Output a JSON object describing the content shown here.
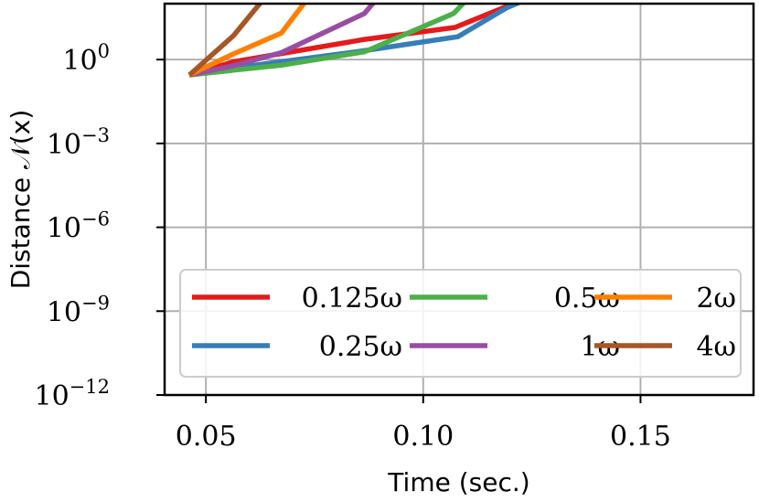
{
  "chart_data": {
    "type": "line",
    "xlabel": "Time (sec.)",
    "ylabel": "Distance 𝒩(x)",
    "xlim": [
      0.0405,
      0.176
    ],
    "ylim_log10": [
      -12,
      2
    ],
    "x_ticks": [
      {
        "value": 0.05,
        "label": "0.05"
      },
      {
        "value": 0.1,
        "label": "0.10"
      },
      {
        "value": 0.15,
        "label": "0.15"
      }
    ],
    "y_ticks": [
      {
        "exp": 0,
        "label": "0"
      },
      {
        "exp": -3,
        "label": "−3"
      },
      {
        "exp": -6,
        "label": "−6"
      },
      {
        "exp": -9,
        "label": "−9"
      },
      {
        "exp": -12,
        "label": "−12"
      }
    ],
    "y_tick_base": "10",
    "grid": true,
    "legend_position": "lower-right",
    "series": [
      {
        "name": "0.125ω",
        "color": "#e41a1c",
        "points": [
          [
            0.0462,
            -0.55
          ],
          [
            0.0563,
            -0.08
          ],
          [
            0.0865,
            0.72
          ],
          [
            0.1073,
            1.15
          ],
          [
            0.1192,
            1.9
          ],
          [
            0.125,
            2.2
          ]
        ]
      },
      {
        "name": "0.25ω",
        "color": "#377eb8",
        "points": [
          [
            0.0462,
            -0.55
          ],
          [
            0.0563,
            -0.3
          ],
          [
            0.0865,
            0.32
          ],
          [
            0.108,
            0.82
          ],
          [
            0.1192,
            1.85
          ],
          [
            0.126,
            2.3
          ]
        ]
      },
      {
        "name": "0.5ω",
        "color": "#4daf4a",
        "points": [
          [
            0.0462,
            -0.55
          ],
          [
            0.0563,
            -0.38
          ],
          [
            0.0674,
            -0.2
          ],
          [
            0.0865,
            0.28
          ],
          [
            0.107,
            1.65
          ],
          [
            0.111,
            2.3
          ]
        ]
      },
      {
        "name": "1ω",
        "color": "#984ea3",
        "points": [
          [
            0.0462,
            -0.55
          ],
          [
            0.0563,
            -0.22
          ],
          [
            0.0674,
            0.25
          ],
          [
            0.0865,
            1.65
          ],
          [
            0.09,
            2.3
          ]
        ]
      },
      {
        "name": "2ω",
        "color": "#ff7f00",
        "points": [
          [
            0.0462,
            -0.55
          ],
          [
            0.0563,
            0.2
          ],
          [
            0.0674,
            0.95
          ],
          [
            0.074,
            2.3
          ]
        ]
      },
      {
        "name": "4ω",
        "color": "#a65628",
        "points": [
          [
            0.0462,
            -0.55
          ],
          [
            0.0563,
            0.85
          ],
          [
            0.064,
            2.3
          ]
        ]
      }
    ]
  }
}
